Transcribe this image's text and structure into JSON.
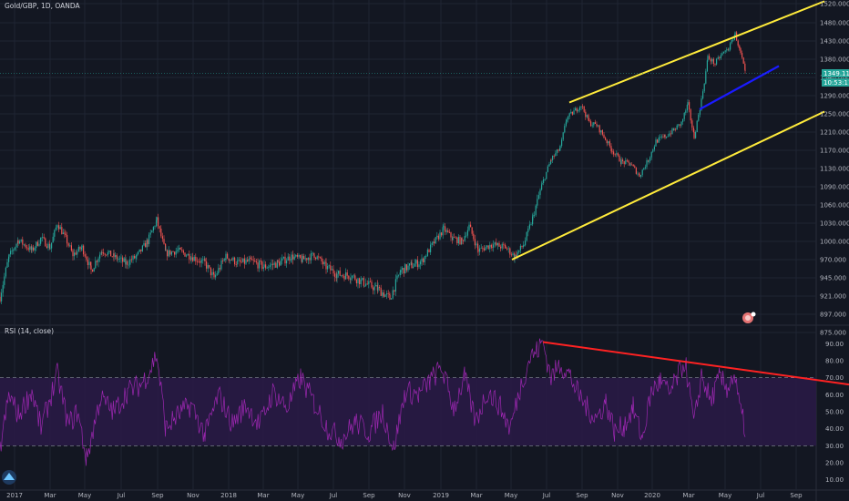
{
  "header": {
    "title": "Gold/GBP, 1D, OANDA"
  },
  "rsi_panel": {
    "title": "RSI (14, close)"
  },
  "price_badges": {
    "last_price": "1349.113",
    "countdown": "10:53:11"
  },
  "colors": {
    "background": "#131722",
    "grid": "#1f2433",
    "up_candle": "#26a69a",
    "down_candle": "#ef5350",
    "channel": "#ffeb3b",
    "support": "#1a1aff",
    "rsi_line": "#9c27b0",
    "rsi_band": "#2a1a47",
    "rsi_trend": "#ff2222"
  },
  "chart_data": [
    {
      "type": "candlestick",
      "title": "Gold/GBP, 1D, OANDA",
      "y_ticks": [
        "1520.000",
        "1480.000",
        "1430.000",
        "1380.000",
        "1340.000",
        "1290.000",
        "1250.000",
        "1210.000",
        "1170.000",
        "1130.000",
        "1090.000",
        "1060.000",
        "1030.000",
        "1000.000",
        "970.000",
        "945.000",
        "921.000",
        "897.000",
        "875.000"
      ],
      "x_ticks": [
        "2017",
        "Mar",
        "May",
        "Jul",
        "Sep",
        "Nov",
        "2018",
        "Mar",
        "May",
        "Jul",
        "Sep",
        "Nov",
        "2019",
        "Mar",
        "May",
        "Jul",
        "Sep",
        "Nov",
        "2020",
        "Mar",
        "May",
        "Jul",
        "Sep"
      ],
      "ylim": [
        875,
        1520
      ],
      "series": [
        {
          "values": [
            {
              "t": 0,
              "v": 920
            },
            {
              "t": 10,
              "v": 975
            },
            {
              "t": 20,
              "v": 1002
            },
            {
              "t": 35,
              "v": 985
            },
            {
              "t": 45,
              "v": 1005
            },
            {
              "t": 55,
              "v": 990
            },
            {
              "t": 63,
              "v": 1030
            },
            {
              "t": 72,
              "v": 1005
            },
            {
              "t": 80,
              "v": 978
            },
            {
              "t": 90,
              "v": 990
            },
            {
              "t": 100,
              "v": 955
            },
            {
              "t": 112,
              "v": 985
            },
            {
              "t": 125,
              "v": 975
            },
            {
              "t": 138,
              "v": 965
            },
            {
              "t": 150,
              "v": 975
            },
            {
              "t": 162,
              "v": 1000
            },
            {
              "t": 172,
              "v": 1035
            },
            {
              "t": 182,
              "v": 980
            },
            {
              "t": 195,
              "v": 985
            },
            {
              "t": 210,
              "v": 975
            },
            {
              "t": 225,
              "v": 965
            },
            {
              "t": 235,
              "v": 945
            },
            {
              "t": 248,
              "v": 975
            },
            {
              "t": 262,
              "v": 965
            },
            {
              "t": 275,
              "v": 968
            },
            {
              "t": 290,
              "v": 960
            },
            {
              "t": 305,
              "v": 965
            },
            {
              "t": 320,
              "v": 975
            },
            {
              "t": 332,
              "v": 970
            },
            {
              "t": 345,
              "v": 978
            },
            {
              "t": 358,
              "v": 960
            },
            {
              "t": 370,
              "v": 950
            },
            {
              "t": 385,
              "v": 948
            },
            {
              "t": 400,
              "v": 938
            },
            {
              "t": 415,
              "v": 930
            },
            {
              "t": 428,
              "v": 918
            },
            {
              "t": 440,
              "v": 955
            },
            {
              "t": 452,
              "v": 962
            },
            {
              "t": 463,
              "v": 968
            },
            {
              "t": 475,
              "v": 995
            },
            {
              "t": 487,
              "v": 1020
            },
            {
              "t": 497,
              "v": 1005
            },
            {
              "t": 507,
              "v": 1000
            },
            {
              "t": 515,
              "v": 1025
            },
            {
              "t": 525,
              "v": 985
            },
            {
              "t": 540,
              "v": 995
            },
            {
              "t": 555,
              "v": 990
            },
            {
              "t": 565,
              "v": 975
            },
            {
              "t": 575,
              "v": 995
            },
            {
              "t": 585,
              "v": 1040
            },
            {
              "t": 595,
              "v": 1095
            },
            {
              "t": 605,
              "v": 1150
            },
            {
              "t": 615,
              "v": 1175
            },
            {
              "t": 622,
              "v": 1240
            },
            {
              "t": 630,
              "v": 1255
            },
            {
              "t": 638,
              "v": 1270
            },
            {
              "t": 647,
              "v": 1230
            },
            {
              "t": 655,
              "v": 1225
            },
            {
              "t": 663,
              "v": 1200
            },
            {
              "t": 672,
              "v": 1170
            },
            {
              "t": 682,
              "v": 1145
            },
            {
              "t": 692,
              "v": 1140
            },
            {
              "t": 702,
              "v": 1115
            },
            {
              "t": 712,
              "v": 1150
            },
            {
              "t": 720,
              "v": 1190
            },
            {
              "t": 730,
              "v": 1200
            },
            {
              "t": 740,
              "v": 1215
            },
            {
              "t": 748,
              "v": 1230
            },
            {
              "t": 755,
              "v": 1270
            },
            {
              "t": 762,
              "v": 1200
            },
            {
              "t": 770,
              "v": 1280
            },
            {
              "t": 777,
              "v": 1385
            },
            {
              "t": 785,
              "v": 1370
            },
            {
              "t": 793,
              "v": 1395
            },
            {
              "t": 800,
              "v": 1410
            },
            {
              "t": 807,
              "v": 1450
            },
            {
              "t": 813,
              "v": 1395
            },
            {
              "t": 818,
              "v": 1349
            }
          ]
        }
      ],
      "channel_upper": [
        {
          "t": 625,
          "v": 1275
        },
        {
          "t": 905,
          "v": 1525
        }
      ],
      "channel_lower": [
        {
          "t": 562,
          "v": 970
        },
        {
          "t": 905,
          "v": 1255
        }
      ],
      "support_line": [
        {
          "t": 768,
          "v": 1260
        },
        {
          "t": 855,
          "v": 1365
        }
      ]
    },
    {
      "type": "line",
      "title": "RSI (14, close)",
      "y_ticks": [
        "90.00",
        "80.00",
        "70.00",
        "60.00",
        "50.00",
        "40.00",
        "30.00",
        "20.00",
        "10.00"
      ],
      "ylim": [
        5,
        95
      ],
      "bands": [
        30,
        70
      ],
      "series": [
        {
          "values": [
            {
              "t": 0,
              "v": 28
            },
            {
              "t": 10,
              "v": 60
            },
            {
              "t": 20,
              "v": 48
            },
            {
              "t": 35,
              "v": 62
            },
            {
              "t": 45,
              "v": 40
            },
            {
              "t": 55,
              "v": 58
            },
            {
              "t": 63,
              "v": 72
            },
            {
              "t": 75,
              "v": 42
            },
            {
              "t": 85,
              "v": 50
            },
            {
              "t": 95,
              "v": 22
            },
            {
              "t": 110,
              "v": 58
            },
            {
              "t": 125,
              "v": 50
            },
            {
              "t": 140,
              "v": 62
            },
            {
              "t": 155,
              "v": 66
            },
            {
              "t": 165,
              "v": 75
            },
            {
              "t": 172,
              "v": 84
            },
            {
              "t": 182,
              "v": 40
            },
            {
              "t": 195,
              "v": 48
            },
            {
              "t": 210,
              "v": 54
            },
            {
              "t": 225,
              "v": 36
            },
            {
              "t": 240,
              "v": 60
            },
            {
              "t": 255,
              "v": 43
            },
            {
              "t": 270,
              "v": 54
            },
            {
              "t": 285,
              "v": 42
            },
            {
              "t": 300,
              "v": 62
            },
            {
              "t": 315,
              "v": 52
            },
            {
              "t": 330,
              "v": 70
            },
            {
              "t": 345,
              "v": 55
            },
            {
              "t": 360,
              "v": 40
            },
            {
              "t": 375,
              "v": 34
            },
            {
              "t": 390,
              "v": 44
            },
            {
              "t": 405,
              "v": 38
            },
            {
              "t": 420,
              "v": 50
            },
            {
              "t": 432,
              "v": 28
            },
            {
              "t": 445,
              "v": 62
            },
            {
              "t": 460,
              "v": 60
            },
            {
              "t": 472,
              "v": 68
            },
            {
              "t": 485,
              "v": 76
            },
            {
              "t": 498,
              "v": 52
            },
            {
              "t": 510,
              "v": 70
            },
            {
              "t": 522,
              "v": 44
            },
            {
              "t": 535,
              "v": 62
            },
            {
              "t": 548,
              "v": 54
            },
            {
              "t": 560,
              "v": 40
            },
            {
              "t": 572,
              "v": 66
            },
            {
              "t": 582,
              "v": 82
            },
            {
              "t": 590,
              "v": 86
            },
            {
              "t": 596,
              "v": 91
            },
            {
              "t": 605,
              "v": 70
            },
            {
              "t": 615,
              "v": 78
            },
            {
              "t": 625,
              "v": 72
            },
            {
              "t": 635,
              "v": 60
            },
            {
              "t": 645,
              "v": 52
            },
            {
              "t": 655,
              "v": 46
            },
            {
              "t": 665,
              "v": 56
            },
            {
              "t": 675,
              "v": 38
            },
            {
              "t": 685,
              "v": 42
            },
            {
              "t": 695,
              "v": 52
            },
            {
              "t": 705,
              "v": 34
            },
            {
              "t": 715,
              "v": 62
            },
            {
              "t": 725,
              "v": 68
            },
            {
              "t": 735,
              "v": 60
            },
            {
              "t": 745,
              "v": 72
            },
            {
              "t": 752,
              "v": 80
            },
            {
              "t": 762,
              "v": 42
            },
            {
              "t": 770,
              "v": 72
            },
            {
              "t": 780,
              "v": 56
            },
            {
              "t": 790,
              "v": 70
            },
            {
              "t": 798,
              "v": 64
            },
            {
              "t": 806,
              "v": 72
            },
            {
              "t": 812,
              "v": 52
            },
            {
              "t": 818,
              "v": 40
            }
          ]
        }
      ],
      "trendline": [
        {
          "t": 596,
          "v": 91
        },
        {
          "t": 932,
          "v": 66
        }
      ]
    }
  ]
}
